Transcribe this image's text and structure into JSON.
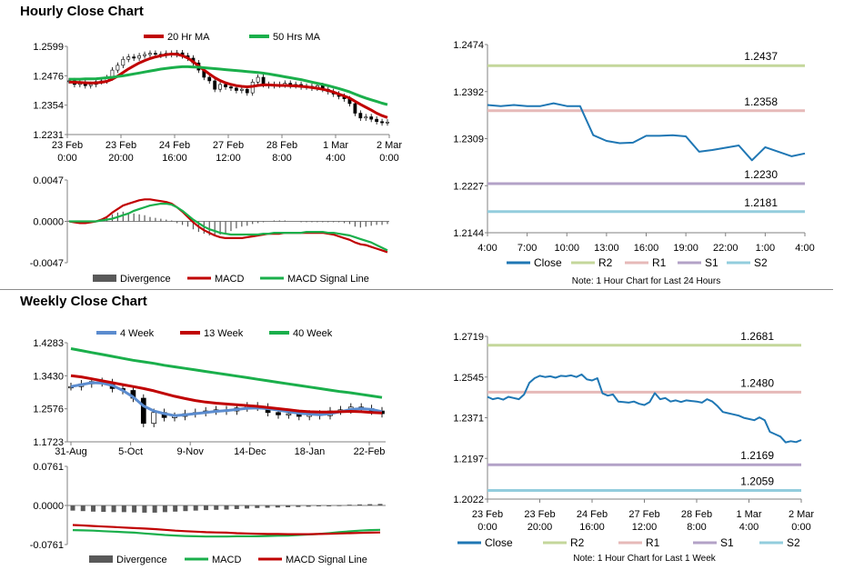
{
  "sections": {
    "hourly_title": "Hourly Close Chart",
    "weekly_title": "Weekly Close Chart"
  },
  "colors": {
    "ma_short": "#c00000",
    "ma_long": "#1aaf4b",
    "macd_red": "#c00000",
    "macd_green": "#1aaf4b",
    "ma4": "#5b8ccf",
    "divergence": "#595959",
    "close": "#1f77b4",
    "r2": "#c4d79b",
    "r1": "#e6b9b8",
    "s1": "#b3a2c7",
    "s2": "#93cddd",
    "candle": "#000000",
    "axis": "#808080"
  },
  "chart_data": [
    {
      "id": "hourly-price",
      "type": "line",
      "legend": [
        {
          "name": "20 Hr MA",
          "color_key": "ma_short"
        },
        {
          "name": "50 Hrs MA",
          "color_key": "ma_long"
        }
      ],
      "y_ticks": [
        "1.2599",
        "1.2476",
        "1.2354",
        "1.2231"
      ],
      "ylim": [
        1.2231,
        1.2599
      ],
      "x_ticks": [
        [
          "23 Feb",
          "0:00"
        ],
        [
          "23 Feb",
          "20:00"
        ],
        [
          "24 Feb",
          "16:00"
        ],
        [
          "27 Feb",
          "12:00"
        ],
        [
          "28 Feb",
          "8:00"
        ],
        [
          "1 Mar",
          "4:00"
        ],
        [
          "2 Mar",
          "0:00"
        ]
      ],
      "close": [
        1.2455,
        1.244,
        1.2448,
        1.2435,
        1.244,
        1.2452,
        1.2455,
        1.2468,
        1.25,
        1.252,
        1.2545,
        1.2555,
        1.255,
        1.256,
        1.2565,
        1.257,
        1.2566,
        1.2562,
        1.257,
        1.2565,
        1.2572,
        1.256,
        1.255,
        1.253,
        1.25,
        1.247,
        1.2455,
        1.242,
        1.244,
        1.243,
        1.2425,
        1.2415,
        1.242,
        1.2405,
        1.245,
        1.247,
        1.244,
        1.2435,
        1.244,
        1.2438,
        1.2445,
        1.2435,
        1.244,
        1.243,
        1.2432,
        1.2425,
        1.2435,
        1.242,
        1.241,
        1.24,
        1.239,
        1.238,
        1.236,
        1.232,
        1.23,
        1.2305,
        1.2295,
        1.2285,
        1.228,
        1.2283
      ],
      "series": [
        {
          "name": "20 Hr MA",
          "color_key": "ma_short",
          "values": [
            1.245,
            1.2449,
            1.2448,
            1.2447,
            1.2446,
            1.2447,
            1.2449,
            1.2453,
            1.2462,
            1.2475,
            1.249,
            1.2505,
            1.2518,
            1.253,
            1.254,
            1.2548,
            1.2555,
            1.256,
            1.2564,
            1.2567,
            1.2566,
            1.256,
            1.255,
            1.2535,
            1.2517,
            1.25,
            1.2484,
            1.2468,
            1.2456,
            1.2447,
            1.244,
            1.2435,
            1.2432,
            1.243,
            1.2432,
            1.2436,
            1.2438,
            1.2438,
            1.2437,
            1.2436,
            1.2436,
            1.2435,
            1.2434,
            1.2432,
            1.243,
            1.2427,
            1.2424,
            1.242,
            1.2415,
            1.2408,
            1.24,
            1.2392,
            1.2383,
            1.237,
            1.2357,
            1.2345,
            1.2333,
            1.232,
            1.231,
            1.2302
          ]
        },
        {
          "name": "50 Hrs MA",
          "color_key": "ma_long",
          "values": [
            1.2462,
            1.2462,
            1.2462,
            1.2463,
            1.2463,
            1.2464,
            1.2466,
            1.2468,
            1.247,
            1.2473,
            1.2476,
            1.248,
            1.2484,
            1.2488,
            1.2492,
            1.2496,
            1.25,
            1.2504,
            1.2507,
            1.251,
            1.2512,
            1.2514,
            1.2514,
            1.2513,
            1.2512,
            1.251,
            1.2508,
            1.2506,
            1.2504,
            1.2502,
            1.25,
            1.2498,
            1.2496,
            1.2494,
            1.2492,
            1.249,
            1.2487,
            1.2484,
            1.248,
            1.2476,
            1.2472,
            1.2468,
            1.2464,
            1.246,
            1.2455,
            1.245,
            1.2445,
            1.244,
            1.2435,
            1.2429,
            1.2423,
            1.2416,
            1.2409,
            1.24,
            1.2391,
            1.2383,
            1.2376,
            1.2369,
            1.2362,
            1.2356
          ]
        }
      ]
    },
    {
      "id": "hourly-macd",
      "type": "line",
      "legend": [
        {
          "name": "Divergence",
          "color_key": "divergence"
        },
        {
          "name": "MACD",
          "color_key": "macd_red"
        },
        {
          "name": "MACD Signal Line",
          "color_key": "macd_green"
        }
      ],
      "y_ticks": [
        "0.0047",
        "0.0000",
        "-0.0047"
      ],
      "ylim": [
        -0.0047,
        0.0047
      ],
      "divergence": [
        0.0001,
        0.0001,
        0.0001,
        0.0001,
        0.0001,
        0.0001,
        0.0002,
        0.0004,
        0.0008,
        0.001,
        0.0011,
        0.001,
        0.0009,
        0.0008,
        0.0007,
        0.0005,
        0.0004,
        0.0003,
        0.0002,
        0.0001,
        -0.0002,
        -0.0004,
        -0.0006,
        -0.0009,
        -0.0012,
        -0.0014,
        -0.0016,
        -0.0016,
        -0.0015,
        -0.0013,
        -0.0011,
        -0.0008,
        -0.0006,
        -0.0005,
        -0.0003,
        -0.0002,
        -0.0001,
        0.0,
        0.0001,
        0.0001,
        0.0001,
        0.0,
        0.0,
        -0.0001,
        -0.0001,
        -0.0001,
        -0.0001,
        -0.0001,
        -0.0001,
        -0.0001,
        -0.0001,
        -0.0002,
        -0.0003,
        -0.0006,
        -0.0007,
        -0.0006,
        -0.0005,
        -0.0004,
        -0.0004,
        -0.0003
      ],
      "series": [
        {
          "name": "MACD",
          "color_key": "macd_red",
          "values": [
            0.0,
            -0.0001,
            -0.0002,
            -0.0002,
            -0.0001,
            0.0,
            0.0002,
            0.0005,
            0.001,
            0.0014,
            0.0018,
            0.002,
            0.0022,
            0.0024,
            0.0025,
            0.0025,
            0.0024,
            0.0023,
            0.0022,
            0.002,
            0.0016,
            0.0011,
            0.0005,
            -0.0001,
            -0.0006,
            -0.001,
            -0.0013,
            -0.0016,
            -0.0018,
            -0.0019,
            -0.0019,
            -0.0019,
            -0.0019,
            -0.0018,
            -0.0017,
            -0.0016,
            -0.0015,
            -0.0014,
            -0.0014,
            -0.0014,
            -0.0013,
            -0.0013,
            -0.0013,
            -0.0013,
            -0.0013,
            -0.0013,
            -0.0013,
            -0.0013,
            -0.0014,
            -0.0015,
            -0.0017,
            -0.0019,
            -0.0021,
            -0.0024,
            -0.0026,
            -0.0027,
            -0.0029,
            -0.0031,
            -0.0033,
            -0.0035
          ]
        },
        {
          "name": "MACD Signal Line",
          "color_key": "macd_green",
          "values": [
            0.0,
            0.0,
            0.0,
            0.0,
            0.0,
            0.0,
            0.0001,
            0.0002,
            0.0003,
            0.0005,
            0.0007,
            0.0009,
            0.0012,
            0.0014,
            0.0016,
            0.0018,
            0.0019,
            0.002,
            0.002,
            0.0019,
            0.0016,
            0.0012,
            0.0007,
            0.0002,
            -0.0002,
            -0.0006,
            -0.0009,
            -0.0011,
            -0.0013,
            -0.0014,
            -0.0015,
            -0.0015,
            -0.0015,
            -0.0015,
            -0.0015,
            -0.0015,
            -0.0014,
            -0.0014,
            -0.0013,
            -0.0013,
            -0.0013,
            -0.0013,
            -0.0013,
            -0.0013,
            -0.0012,
            -0.0012,
            -0.0012,
            -0.0012,
            -0.0013,
            -0.0013,
            -0.0014,
            -0.0015,
            -0.0016,
            -0.0018,
            -0.002,
            -0.0022,
            -0.0024,
            -0.0027,
            -0.003,
            -0.0033
          ]
        }
      ]
    },
    {
      "id": "hourly-levels",
      "type": "line",
      "legend": [
        {
          "name": "Close",
          "color_key": "close"
        },
        {
          "name": "R2",
          "color_key": "r2"
        },
        {
          "name": "R1",
          "color_key": "r1"
        },
        {
          "name": "S1",
          "color_key": "s1"
        },
        {
          "name": "S2",
          "color_key": "s2"
        }
      ],
      "note": "Note: 1 Hour Chart for Last 24 Hours",
      "y_ticks": [
        "1.2474",
        "1.2392",
        "1.2309",
        "1.2227",
        "1.2144"
      ],
      "ylim": [
        1.2144,
        1.2474
      ],
      "x_ticks": [
        "4:00",
        "7:00",
        "10:00",
        "13:00",
        "16:00",
        "19:00",
        "22:00",
        "1:00",
        "4:00"
      ],
      "x_hours": [
        0,
        1,
        2,
        3,
        4,
        5,
        6,
        7,
        8,
        9,
        10,
        11,
        12,
        13,
        14,
        15,
        16,
        17,
        18,
        19,
        20,
        21,
        22,
        23,
        24
      ],
      "close": [
        1.2368,
        1.2366,
        1.2368,
        1.2366,
        1.2366,
        1.2371,
        1.2366,
        1.2366,
        1.2315,
        1.2305,
        1.2301,
        1.2302,
        1.2314,
        1.2314,
        1.2315,
        1.2313,
        1.2286,
        1.2289,
        1.2293,
        1.2297,
        1.2271,
        1.2294,
        1.2286,
        1.2278,
        1.2283
      ],
      "levels": [
        {
          "name": "R2",
          "value": 1.2437,
          "label": "1.2437",
          "color_key": "r2"
        },
        {
          "name": "R1",
          "value": 1.2358,
          "label": "1.2358",
          "color_key": "r1"
        },
        {
          "name": "S1",
          "value": 1.223,
          "label": "1.2230",
          "color_key": "s1"
        },
        {
          "name": "S2",
          "value": 1.2181,
          "label": "1.2181",
          "color_key": "s2"
        }
      ]
    },
    {
      "id": "weekly-price",
      "type": "line",
      "legend": [
        {
          "name": "4 Week",
          "color_key": "ma4"
        },
        {
          "name": "13 Week",
          "color_key": "ma_short"
        },
        {
          "name": "40 Week",
          "color_key": "ma_long"
        }
      ],
      "y_ticks": [
        "1.4283",
        "1.3430",
        "1.2576",
        "1.1723"
      ],
      "ylim": [
        1.1723,
        1.4283
      ],
      "x_ticks": [
        "31-Aug",
        "5-Oct",
        "9-Nov",
        "14-Dec",
        "18-Jan",
        "22-Feb"
      ],
      "close": [
        1.315,
        1.322,
        1.328,
        1.325,
        1.31,
        1.305,
        1.285,
        1.22,
        1.248,
        1.235,
        1.238,
        1.245,
        1.248,
        1.252,
        1.255,
        1.252,
        1.26,
        1.265,
        1.262,
        1.248,
        1.242,
        1.245,
        1.238,
        1.244,
        1.24,
        1.252,
        1.255,
        1.262,
        1.258,
        1.252,
        1.245
      ],
      "series": [
        {
          "name": "4 Week",
          "color_key": "ma4",
          "values": [
            1.315,
            1.32,
            1.325,
            1.324,
            1.318,
            1.305,
            1.288,
            1.265,
            1.252,
            1.245,
            1.24,
            1.242,
            1.245,
            1.248,
            1.251,
            1.253,
            1.256,
            1.259,
            1.26,
            1.258,
            1.254,
            1.25,
            1.246,
            1.244,
            1.242,
            1.245,
            1.25,
            1.256,
            1.258,
            1.256,
            1.25
          ]
        },
        {
          "name": "13 Week",
          "color_key": "ma_short",
          "values": [
            1.343,
            1.34,
            1.335,
            1.33,
            1.325,
            1.32,
            1.315,
            1.31,
            1.304,
            1.297,
            1.29,
            1.284,
            1.279,
            1.275,
            1.272,
            1.27,
            1.268,
            1.266,
            1.264,
            1.261,
            1.258,
            1.255,
            1.252,
            1.25,
            1.249,
            1.249,
            1.25,
            1.251,
            1.25,
            1.248,
            1.247
          ]
        },
        {
          "name": "40 Week",
          "color_key": "ma_long",
          "values": [
            1.413,
            1.408,
            1.403,
            1.398,
            1.393,
            1.388,
            1.383,
            1.379,
            1.375,
            1.37,
            1.366,
            1.362,
            1.358,
            1.354,
            1.35,
            1.346,
            1.342,
            1.338,
            1.334,
            1.33,
            1.326,
            1.322,
            1.318,
            1.314,
            1.31,
            1.306,
            1.302,
            1.299,
            1.295,
            1.291,
            1.287
          ]
        }
      ]
    },
    {
      "id": "weekly-macd",
      "type": "line",
      "legend": [
        {
          "name": "Divergence",
          "color_key": "divergence"
        },
        {
          "name": "MACD",
          "color_key": "macd_green"
        },
        {
          "name": "MACD Signal Line",
          "color_key": "macd_red"
        }
      ],
      "y_ticks": [
        "0.0761",
        "0.0000",
        "-0.0761"
      ],
      "ylim": [
        -0.0761,
        0.0761
      ],
      "divergence": [
        -0.01,
        -0.011,
        -0.012,
        -0.0125,
        -0.013,
        -0.013,
        -0.0135,
        -0.014,
        -0.014,
        -0.013,
        -0.012,
        -0.011,
        -0.01,
        -0.009,
        -0.0085,
        -0.008,
        -0.007,
        -0.006,
        -0.005,
        -0.0045,
        -0.004,
        -0.0035,
        -0.003,
        -0.0025,
        -0.0015,
        -0.0005,
        0.0005,
        0.0015,
        0.002,
        0.0025,
        0.003
      ],
      "series": [
        {
          "name": "MACD",
          "color_key": "macd_green",
          "values": [
            -0.048,
            -0.0485,
            -0.049,
            -0.05,
            -0.051,
            -0.052,
            -0.053,
            -0.0545,
            -0.056,
            -0.0575,
            -0.0585,
            -0.0595,
            -0.06,
            -0.0605,
            -0.0605,
            -0.0605,
            -0.06,
            -0.06,
            -0.06,
            -0.0595,
            -0.059,
            -0.0585,
            -0.0575,
            -0.0565,
            -0.0555,
            -0.054,
            -0.052,
            -0.0505,
            -0.049,
            -0.048,
            -0.0475
          ]
        },
        {
          "name": "MACD Signal Line",
          "color_key": "macd_red",
          "values": [
            -0.038,
            -0.039,
            -0.04,
            -0.041,
            -0.042,
            -0.043,
            -0.044,
            -0.045,
            -0.046,
            -0.0475,
            -0.049,
            -0.05,
            -0.051,
            -0.052,
            -0.0525,
            -0.053,
            -0.054,
            -0.0545,
            -0.055,
            -0.0555,
            -0.0555,
            -0.056,
            -0.056,
            -0.056,
            -0.0555,
            -0.055,
            -0.0545,
            -0.054,
            -0.0535,
            -0.053,
            -0.0525
          ]
        }
      ]
    },
    {
      "id": "weekly-levels",
      "type": "line",
      "legend": [
        {
          "name": "Close",
          "color_key": "close"
        },
        {
          "name": "R2",
          "color_key": "r2"
        },
        {
          "name": "R1",
          "color_key": "r1"
        },
        {
          "name": "S1",
          "color_key": "s1"
        },
        {
          "name": "S2",
          "color_key": "s2"
        }
      ],
      "note": "Note: 1 Hour Chart for Last 1 Week",
      "y_ticks": [
        "1.2719",
        "1.2545",
        "1.2371",
        "1.2197",
        "1.2022"
      ],
      "ylim": [
        1.2022,
        1.2719
      ],
      "x_ticks": [
        [
          "23 Feb",
          "0:00"
        ],
        [
          "23 Feb",
          "20:00"
        ],
        [
          "24 Feb",
          "16:00"
        ],
        [
          "27 Feb",
          "12:00"
        ],
        [
          "28 Feb",
          "8:00"
        ],
        [
          "1 Mar",
          "4:00"
        ],
        [
          "2 Mar",
          "0:00"
        ]
      ],
      "close": [
        1.246,
        1.245,
        1.2455,
        1.2448,
        1.246,
        1.2455,
        1.245,
        1.247,
        1.252,
        1.254,
        1.255,
        1.2545,
        1.2548,
        1.2542,
        1.255,
        1.2548,
        1.2552,
        1.2545,
        1.2556,
        1.2535,
        1.253,
        1.254,
        1.2475,
        1.2465,
        1.247,
        1.244,
        1.2438,
        1.2435,
        1.244,
        1.243,
        1.2425,
        1.2438,
        1.2476,
        1.245,
        1.2455,
        1.244,
        1.2445,
        1.2438,
        1.2445,
        1.2442,
        1.244,
        1.2435,
        1.245,
        1.244,
        1.242,
        1.2395,
        1.239,
        1.2385,
        1.238,
        1.237,
        1.2365,
        1.236,
        1.2372,
        1.236,
        1.231,
        1.23,
        1.229,
        1.2265,
        1.227,
        1.2266,
        1.2275
      ],
      "levels": [
        {
          "name": "R2",
          "value": 1.2681,
          "label": "1.2681",
          "color_key": "r2"
        },
        {
          "name": "R1",
          "value": 1.248,
          "label": "1.2480",
          "color_key": "r1"
        },
        {
          "name": "S1",
          "value": 1.2169,
          "label": "1.2169",
          "color_key": "s1"
        },
        {
          "name": "S2",
          "value": 1.2059,
          "label": "1.2059",
          "color_key": "s2"
        }
      ]
    }
  ]
}
